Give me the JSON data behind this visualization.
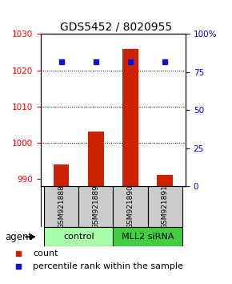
{
  "title": "GDS5452 / 8020955",
  "samples": [
    "GSM921888",
    "GSM921889",
    "GSM921890",
    "GSM921891"
  ],
  "counts": [
    994,
    1003,
    1026,
    991
  ],
  "percentile_values": [
    82,
    82,
    82,
    82
  ],
  "ylim_left": [
    988,
    1030
  ],
  "ylim_right": [
    0,
    100
  ],
  "yticks_left": [
    990,
    1000,
    1010,
    1020,
    1030
  ],
  "yticks_right": [
    0,
    25,
    50,
    75,
    100
  ],
  "bar_color": "#cc2200",
  "dot_color": "#1111cc",
  "groups": [
    {
      "label": "control",
      "samples": [
        0,
        1
      ],
      "color": "#aaffaa"
    },
    {
      "label": "MLL2 siRNA",
      "samples": [
        2,
        3
      ],
      "color": "#44cc44"
    }
  ],
  "agent_label": "agent",
  "legend_count_label": "count",
  "legend_pct_label": "percentile rank within the sample",
  "bar_width": 0.45,
  "sample_panel_bg": "#cccccc",
  "gridline_ticks": [
    1000,
    1010,
    1020
  ]
}
